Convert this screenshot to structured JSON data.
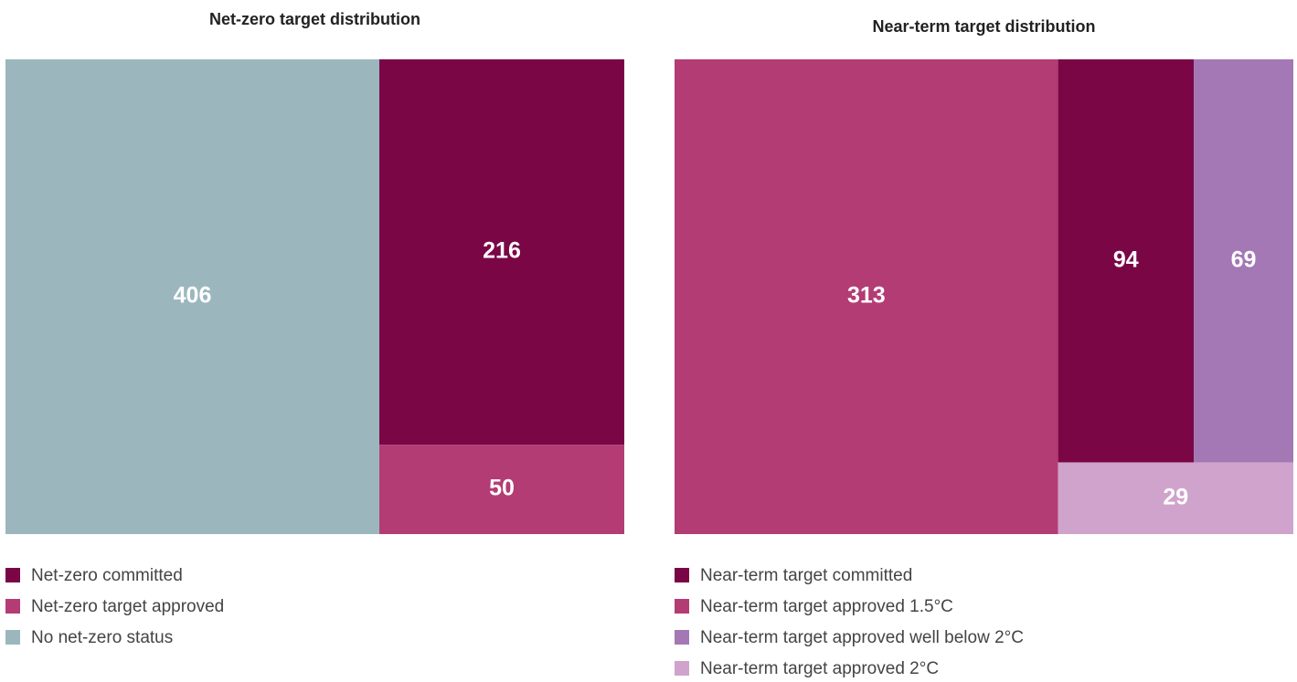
{
  "chart_data": [
    {
      "type": "treemap",
      "title": "Net-zero target distribution",
      "series": [
        {
          "name": "Net-zero committed",
          "color": "#7a0646",
          "value": 216
        },
        {
          "name": "Net-zero target approved",
          "color": "#b33c74",
          "value": 50
        },
        {
          "name": "No net-zero status",
          "color": "#9bb7bd",
          "value": 406
        }
      ]
    },
    {
      "type": "treemap",
      "title": "Near-term target distribution",
      "series": [
        {
          "name": "Near-term target committed",
          "color": "#7a0646",
          "value": 94
        },
        {
          "name": "Near-term target approved 1.5°C",
          "color": "#b33c74",
          "value": 313
        },
        {
          "name": "Near-term target approved well below 2°C",
          "color": "#a378b5",
          "value": 69
        },
        {
          "name": "Near-term target approved 2°C",
          "color": "#cfa3cb",
          "value": 29
        }
      ]
    }
  ]
}
